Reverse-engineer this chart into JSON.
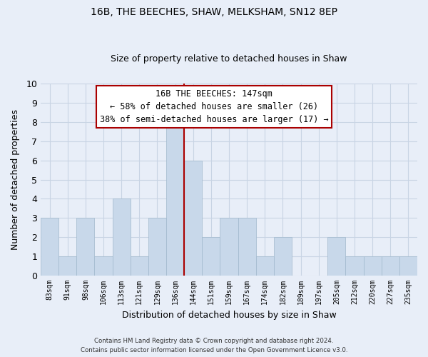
{
  "title": "16B, THE BEECHES, SHAW, MELKSHAM, SN12 8EP",
  "subtitle": "Size of property relative to detached houses in Shaw",
  "xlabel": "Distribution of detached houses by size in Shaw",
  "ylabel": "Number of detached properties",
  "categories": [
    "83sqm",
    "91sqm",
    "98sqm",
    "106sqm",
    "113sqm",
    "121sqm",
    "129sqm",
    "136sqm",
    "144sqm",
    "151sqm",
    "159sqm",
    "167sqm",
    "174sqm",
    "182sqm",
    "189sqm",
    "197sqm",
    "205sqm",
    "212sqm",
    "220sqm",
    "227sqm",
    "235sqm"
  ],
  "values": [
    3,
    1,
    3,
    1,
    4,
    1,
    3,
    8,
    6,
    2,
    3,
    3,
    1,
    2,
    0,
    0,
    2,
    1,
    1,
    1,
    1
  ],
  "bar_color": "#c8d8ea",
  "bar_edge_color": "#a0b8cc",
  "vline_x": 8.0,
  "vline_color": "#aa0000",
  "ylim": [
    0,
    10
  ],
  "yticks": [
    0,
    1,
    2,
    3,
    4,
    5,
    6,
    7,
    8,
    9,
    10
  ],
  "annotation_title": "16B THE BEECHES: 147sqm",
  "annotation_line1": "← 58% of detached houses are smaller (26)",
  "annotation_line2": "38% of semi-detached houses are larger (17) →",
  "annotation_box_color": "#ffffff",
  "annotation_box_edge": "#aa0000",
  "grid_color": "#c8d4e4",
  "background_color": "#e8eef8",
  "footer_line1": "Contains HM Land Registry data © Crown copyright and database right 2024.",
  "footer_line2": "Contains public sector information licensed under the Open Government Licence v3.0."
}
